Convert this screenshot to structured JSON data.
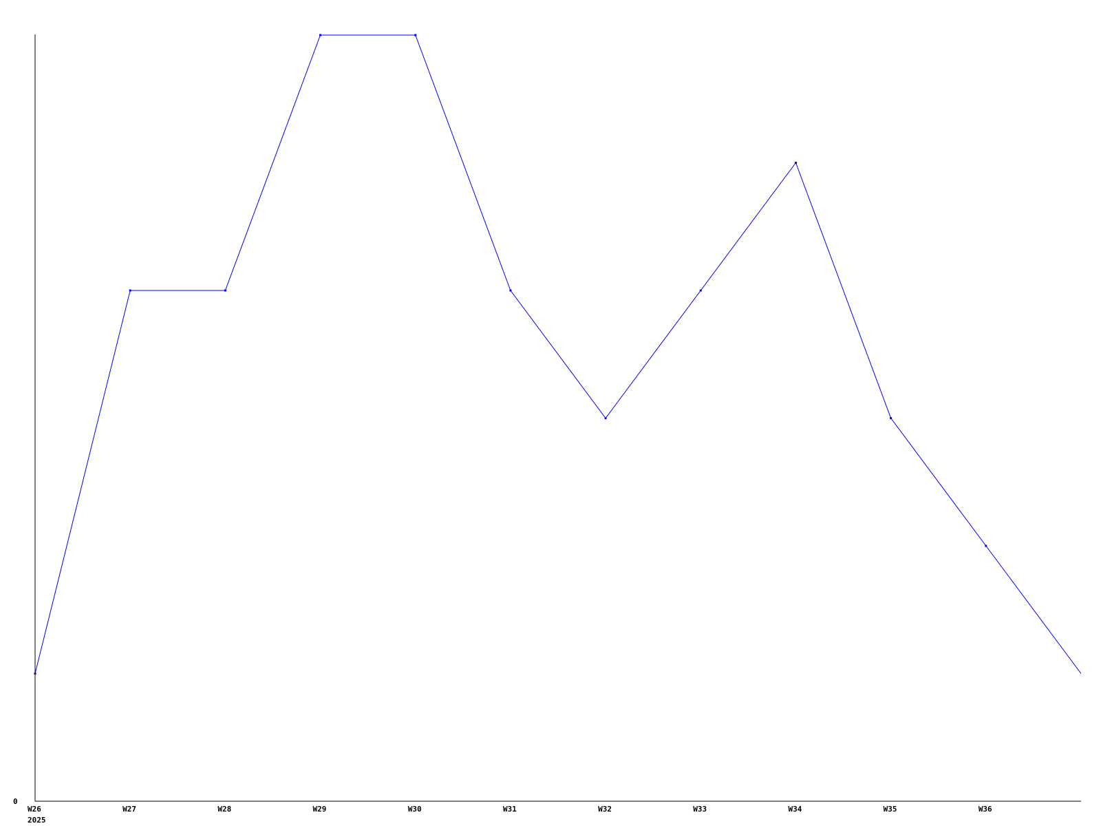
{
  "chart_data": {
    "type": "line",
    "categories": [
      "W26",
      "W27",
      "W28",
      "W29",
      "W30",
      "W31",
      "W32",
      "W33",
      "W34",
      "W35",
      "W36",
      ""
    ],
    "x_sublabel": "2025",
    "series": [
      {
        "values": [
          1,
          4,
          4,
          6,
          6,
          4,
          3,
          4,
          5,
          3,
          2,
          1
        ]
      }
    ],
    "y_tick_labels": [
      "0"
    ],
    "ylim": [
      0,
      6
    ],
    "grid": false,
    "title": "",
    "xlabel": "",
    "ylabel": "",
    "line_color": "#0000ff",
    "axis_color": "#000000"
  }
}
